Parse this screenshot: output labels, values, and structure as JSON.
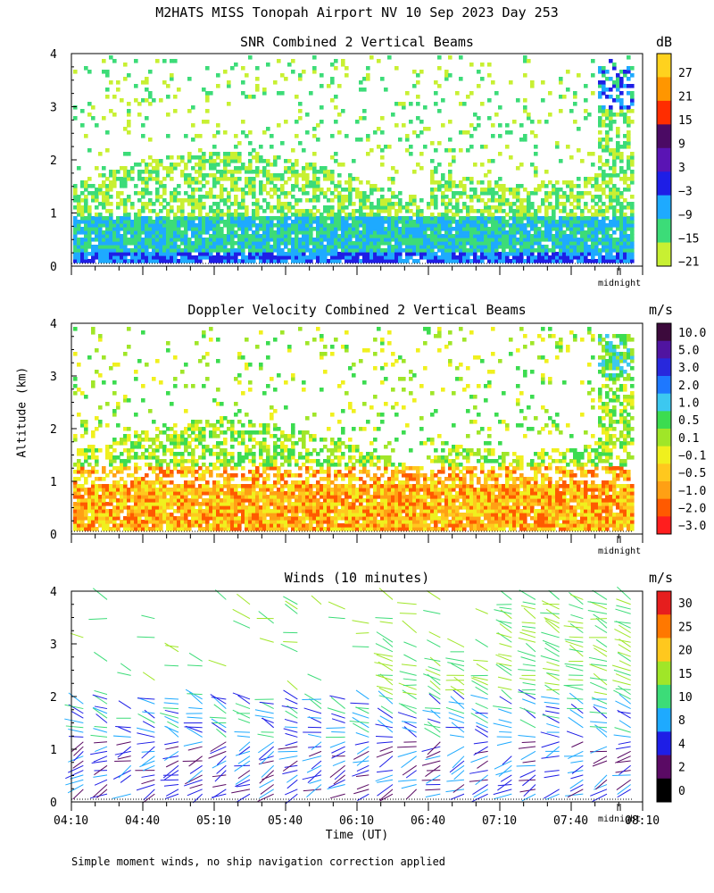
{
  "title": "M2HATS MISS Tonopah Airport NV  10 Sep 2023 Day 253",
  "y_axis_label": "Altitude (km)",
  "x_axis_label": "Time (UT)",
  "footnote": "Simple moment winds, no ship navigation correction applied",
  "midnight_label": "midnight",
  "chart_data": [
    {
      "type": "heatmap",
      "title": "SNR Combined 2 Vertical Beams",
      "unit": "dB",
      "ylim": [
        0,
        4
      ],
      "yticks": [
        "0",
        "1",
        "2",
        "3",
        "4"
      ],
      "xlim_minutes": [
        0,
        240
      ],
      "colorbar_labels": [
        "27",
        "21",
        "15",
        "9",
        "3",
        "−3",
        "−9",
        "−15",
        "−21"
      ],
      "colorbar_colors": [
        "#ffd21e",
        "#ff9600",
        "#ff2d00",
        "#4b0a64",
        "#5a14b4",
        "#1e1ee6",
        "#1eaaff",
        "#3cdc78",
        "#c8f032"
      ]
    },
    {
      "type": "heatmap",
      "title": "Doppler Velocity Combined 2 Vertical Beams",
      "unit": "m/s",
      "ylim": [
        0,
        4
      ],
      "yticks": [
        "0",
        "1",
        "2",
        "3",
        "4"
      ],
      "xlim_minutes": [
        0,
        240
      ],
      "colorbar_labels": [
        "10.0",
        "5.0",
        "3.0",
        "2.0",
        "1.0",
        "0.5",
        "0.1",
        "−0.1",
        "−0.5",
        "−1.0",
        "−2.0",
        "−3.0"
      ],
      "colorbar_colors": [
        "#3c0a3c",
        "#5014a0",
        "#2828dc",
        "#1e78ff",
        "#3cc8f0",
        "#3cdc50",
        "#a0e628",
        "#f0f01e",
        "#ffc81e",
        "#ffa014",
        "#ff5a00",
        "#ff1e1e"
      ]
    },
    {
      "type": "scatter",
      "title": "Winds (10 minutes)",
      "unit": "m/s",
      "ylim": [
        0,
        4
      ],
      "yticks": [
        "0",
        "1",
        "2",
        "3",
        "4"
      ],
      "x_ticklabels": [
        "04:10",
        "04:40",
        "05:10",
        "05:40",
        "06:10",
        "06:40",
        "07:10",
        "07:40",
        "08:10"
      ],
      "colorbar_labels": [
        "30",
        "25",
        "20",
        "15",
        "10",
        "8",
        "4",
        "2",
        "0"
      ],
      "colorbar_colors": [
        "#e61e1e",
        "#ff7800",
        "#ffc81e",
        "#a0e628",
        "#3cdc78",
        "#1eaaff",
        "#1e1ee6",
        "#5a0a64",
        "#000000"
      ]
    }
  ]
}
